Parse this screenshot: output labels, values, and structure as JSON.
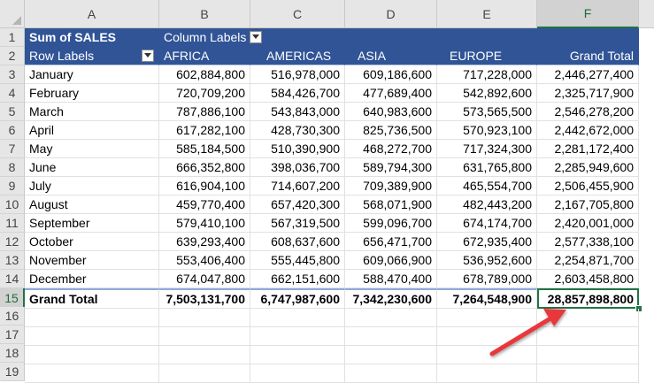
{
  "column_headers": [
    "A",
    "B",
    "C",
    "D",
    "E",
    "F"
  ],
  "row_numbers": [
    "1",
    "2",
    "3",
    "4",
    "5",
    "6",
    "7",
    "8",
    "9",
    "10",
    "11",
    "12",
    "13",
    "14",
    "15",
    "16",
    "17",
    "18",
    "19"
  ],
  "pivot": {
    "values_label": "Sum of SALES",
    "column_labels": "Column Labels",
    "row_labels": "Row Labels",
    "columns": [
      "AFRICA",
      "AMERICAS",
      "ASIA",
      "EUROPE",
      "Grand Total"
    ],
    "rows": [
      {
        "label": "January",
        "values": [
          "602,884,800",
          "516,978,000",
          "609,186,600",
          "717,228,000",
          "2,446,277,400"
        ]
      },
      {
        "label": "February",
        "values": [
          "720,709,200",
          "584,426,700",
          "477,689,400",
          "542,892,600",
          "2,325,717,900"
        ]
      },
      {
        "label": "March",
        "values": [
          "787,886,100",
          "543,843,000",
          "640,983,600",
          "573,565,500",
          "2,546,278,200"
        ]
      },
      {
        "label": "April",
        "values": [
          "617,282,100",
          "428,730,300",
          "825,736,500",
          "570,923,100",
          "2,442,672,000"
        ]
      },
      {
        "label": "May",
        "values": [
          "585,184,500",
          "510,390,900",
          "468,272,700",
          "717,324,300",
          "2,281,172,400"
        ]
      },
      {
        "label": "June",
        "values": [
          "666,352,800",
          "398,036,700",
          "589,794,300",
          "631,765,800",
          "2,285,949,600"
        ]
      },
      {
        "label": "July",
        "values": [
          "616,904,100",
          "714,607,200",
          "709,389,900",
          "465,554,700",
          "2,506,455,900"
        ]
      },
      {
        "label": "August",
        "values": [
          "459,770,400",
          "657,420,300",
          "568,071,900",
          "482,443,200",
          "2,167,705,800"
        ]
      },
      {
        "label": "September",
        "values": [
          "579,410,100",
          "567,319,500",
          "599,096,700",
          "674,174,700",
          "2,420,001,000"
        ]
      },
      {
        "label": "October",
        "values": [
          "639,293,400",
          "608,637,600",
          "656,471,700",
          "672,935,400",
          "2,577,338,100"
        ]
      },
      {
        "label": "November",
        "values": [
          "553,406,400",
          "555,445,800",
          "609,066,900",
          "536,952,600",
          "2,254,871,700"
        ]
      },
      {
        "label": "December",
        "values": [
          "674,047,800",
          "662,151,600",
          "588,470,400",
          "678,789,000",
          "2,603,458,800"
        ]
      }
    ],
    "grand_total": {
      "label": "Grand Total",
      "values": [
        "7,503,131,700",
        "6,747,987,600",
        "7,342,230,600",
        "7,264,548,900",
        "28,857,898,800"
      ]
    }
  },
  "colors": {
    "header_blue": "#305496",
    "selection_green": "#217346",
    "arrow_red": "#e8373a"
  }
}
